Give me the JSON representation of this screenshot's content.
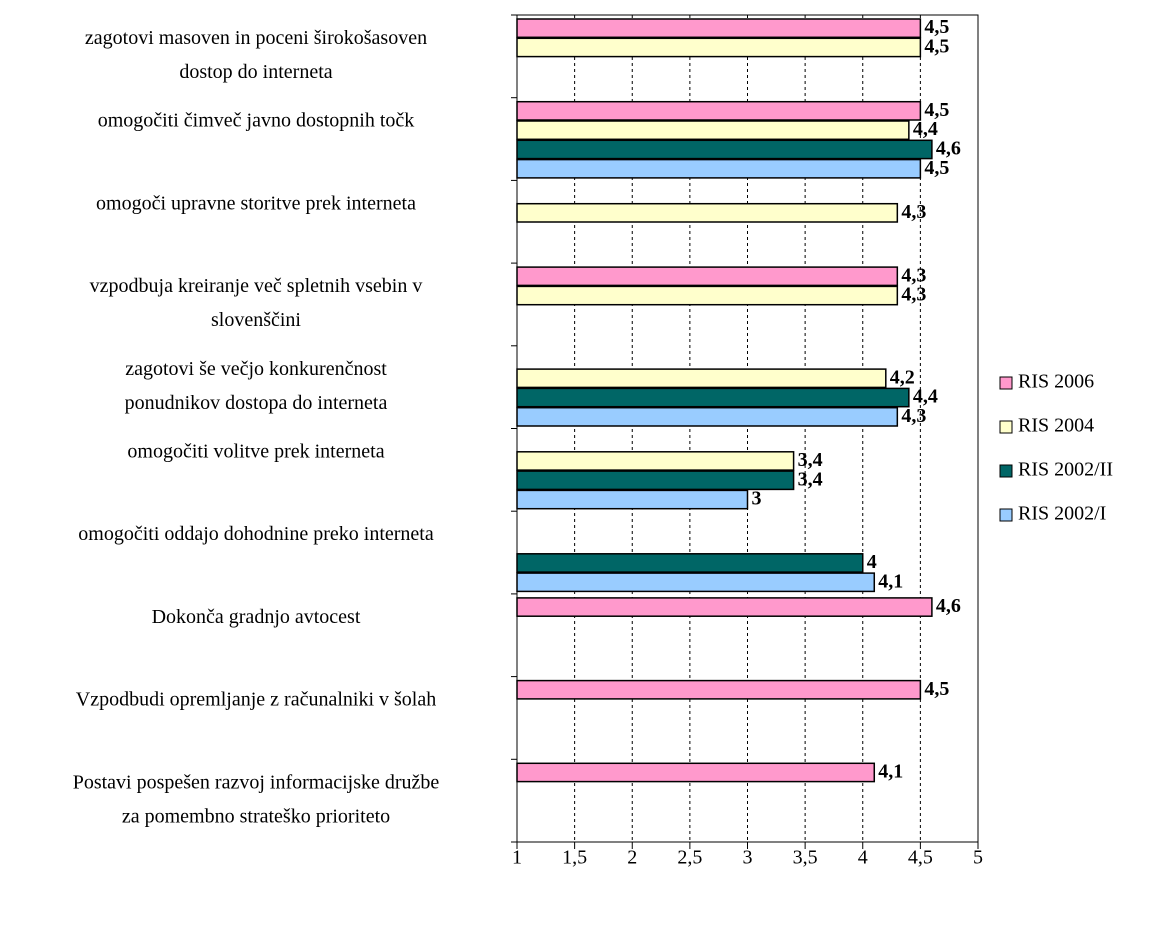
{
  "chart_data": {
    "type": "barh",
    "categories": [
      "zagotovi masoven in poceni širokošasoven\ndostop do interneta",
      "omogočiti čimveč javno dostopnih točk",
      "omogoči upravne storitve prek interneta",
      "vzpodbuja kreiranje več spletnih vsebin v\nslovenščini",
      "zagotovi še večjo konkurenčnost\nponudnikov dostopa do interneta",
      "omogočiti volitve prek interneta",
      "omogočiti oddajo dohodnine preko interneta",
      "Dokonča gradnjo avtocest",
      "Vzpodbudi opremljanje z računalniki v šolah",
      "Postavi pospešen razvoj informacijske družbe\nza pomembno strateško prioriteto"
    ],
    "series": [
      {
        "name": "RIS 2006",
        "color": "#ff99cc",
        "values": [
          4.5,
          4.5,
          null,
          4.3,
          null,
          null,
          null,
          4.6,
          4.5,
          4.1
        ],
        "value_labels": [
          "4,5",
          "4,5",
          null,
          "4,3",
          null,
          null,
          null,
          "4,6",
          "4,5",
          "4,1"
        ]
      },
      {
        "name": "RIS 2004",
        "color": "#ffffcc",
        "values": [
          4.5,
          4.4,
          4.3,
          4.3,
          4.2,
          3.4,
          null,
          null,
          null,
          null
        ],
        "value_labels": [
          "4,5",
          "4,4",
          "4,3",
          "4,3",
          "4,2",
          "3,4",
          null,
          null,
          null,
          null
        ]
      },
      {
        "name": "RIS 2002/II",
        "color": "#006666",
        "values": [
          null,
          4.6,
          null,
          null,
          4.4,
          3.4,
          4,
          null,
          null,
          null
        ],
        "value_labels": [
          null,
          "4,6",
          null,
          null,
          "4,4",
          "3,4",
          "4",
          null,
          null,
          null
        ]
      },
      {
        "name": "RIS 2002/I",
        "color": "#99ccff",
        "values": [
          null,
          4.5,
          null,
          null,
          4.3,
          3,
          4.1,
          null,
          null,
          null
        ],
        "value_labels": [
          null,
          "4,5",
          null,
          null,
          "4,3",
          "3",
          "4,1",
          null,
          null,
          null
        ]
      }
    ],
    "xlim": [
      1,
      5
    ],
    "xticks": [
      1,
      {
        "value": 1.5,
        "label": "1,5"
      },
      2,
      {
        "value": 2.5,
        "label": "2,5"
      },
      3,
      {
        "value": 3.5,
        "label": "3,5"
      },
      4,
      {
        "value": 4.5,
        "label": "4,5"
      },
      5
    ],
    "grid": true,
    "legend": "right"
  }
}
